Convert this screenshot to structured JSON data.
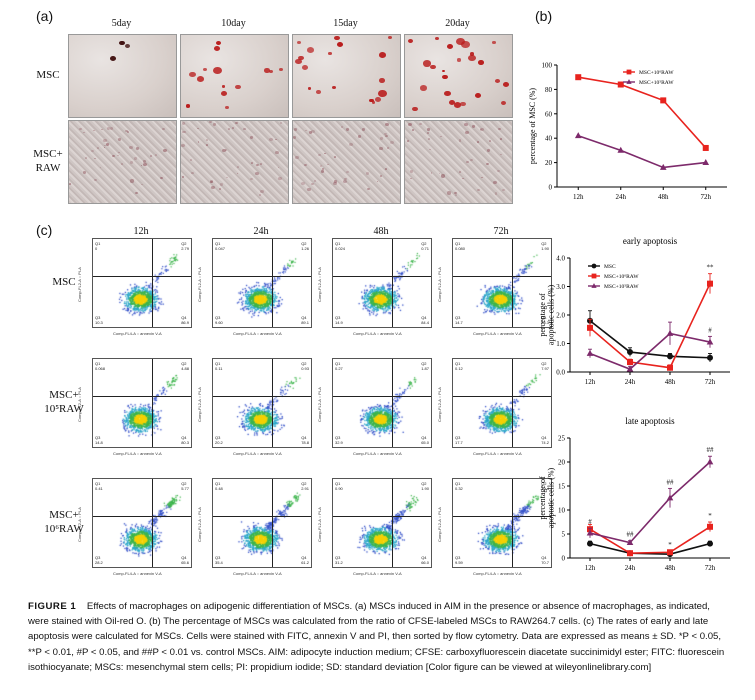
{
  "panels": {
    "a": "(a)",
    "b": "(b)",
    "c": "(c)"
  },
  "panel_a": {
    "columns": [
      "5day",
      "10day",
      "15day",
      "20day"
    ],
    "rows": [
      {
        "lines": [
          "MSC"
        ]
      },
      {
        "lines": [
          "MSC+",
          "RAW"
        ]
      }
    ]
  },
  "panel_c": {
    "columns": [
      "12h",
      "24h",
      "48h",
      "72h"
    ],
    "rows": [
      {
        "lines": [
          "MSC"
        ]
      },
      {
        "lines": [
          "MSC+",
          "10⁵RAW"
        ]
      },
      {
        "lines": [
          "MSC+",
          "10⁶RAW"
        ]
      }
    ],
    "quadrant_values": [
      [
        [
          "0",
          "2.79",
          "10.3",
          "86.9"
        ],
        [
          "0.047",
          "1.26",
          "9.60",
          "89.1"
        ],
        [
          "0.024",
          "0.71",
          "14.9",
          "84.4"
        ],
        [
          "0.080",
          "1.90",
          "14.7",
          "83.3"
        ]
      ],
      [
        [
          "0.068",
          "4.88",
          "14.8",
          "80.3"
        ],
        [
          "0.11",
          "0.93",
          "20.2",
          "78.8"
        ],
        [
          "0.27",
          "1.87",
          "32.9",
          "65.0"
        ],
        [
          "0.12",
          "7.97",
          "17.7",
          "74.2"
        ]
      ],
      [
        [
          "0.41",
          "5.77",
          "28.2",
          "65.6"
        ],
        [
          "0.48",
          "2.91",
          "35.4",
          "61.2"
        ],
        [
          "0.90",
          "1.90",
          "31.2",
          "66.0"
        ],
        [
          "0.32",
          "19.4",
          "9.59",
          "70.7"
        ]
      ]
    ],
    "quadrant_names": [
      "Q1",
      "Q2",
      "Q3",
      "Q4"
    ],
    "x_axis_title": "Comp-FL4-A :: annexin V-A",
    "y_axis_title": "Comp-FL2-A :: PI-A"
  },
  "chart_data": [
    {
      "id": "b",
      "type": "line",
      "title": "",
      "xlabel": "",
      "ylabel": "percentage of MSC (%)",
      "categories": [
        "12h",
        "24h",
        "48h",
        "72h"
      ],
      "ylim": [
        0,
        100
      ],
      "yticks": [
        0,
        20,
        40,
        60,
        80,
        100
      ],
      "legend": "top-right",
      "series": [
        {
          "name": "MSC+10⁶RAW",
          "color": "#e8231e",
          "marker": "square",
          "values": [
            90,
            84,
            71,
            32
          ]
        },
        {
          "name": "MSC+10⁵RAW",
          "color": "#7d2a6b",
          "marker": "triangle",
          "values": [
            42,
            30,
            16,
            20
          ]
        }
      ]
    },
    {
      "id": "c-early",
      "type": "line",
      "title": "early apoptosis",
      "xlabel": "",
      "ylabel": "percentage of apoptotic cells (%)",
      "categories": [
        "12h",
        "24h",
        "48h",
        "72h"
      ],
      "ylim": [
        0,
        4.0
      ],
      "yticks": [
        "0.0",
        "1.0",
        "2.0",
        "3.0",
        "4.0"
      ],
      "legend": "top-left",
      "annotations": [
        {
          "category": "72h",
          "text": "**",
          "series": 1
        },
        {
          "category": "72h",
          "text": "#",
          "series": 2
        }
      ],
      "series": [
        {
          "name": "MSC",
          "color": "#111111",
          "marker": "circle",
          "values": [
            1.8,
            0.7,
            0.55,
            0.5
          ],
          "errors": [
            0.35,
            0.15,
            0.1,
            0.15
          ]
        },
        {
          "name": "MSC+10⁶RAW",
          "color": "#e8231e",
          "marker": "square",
          "values": [
            1.55,
            0.35,
            0.15,
            3.1
          ],
          "errors": [
            0.3,
            0.1,
            0.1,
            0.35
          ]
        },
        {
          "name": "MSC+10⁵RAW",
          "color": "#7d2a6b",
          "marker": "triangle",
          "values": [
            0.65,
            0.1,
            1.35,
            1.05
          ],
          "errors": [
            0.15,
            0.1,
            0.4,
            0.2
          ]
        }
      ]
    },
    {
      "id": "c-late",
      "type": "line",
      "title": "late apoptosis",
      "xlabel": "",
      "ylabel": "percentage of apoptotic cells (%)",
      "categories": [
        "12h",
        "24h",
        "48h",
        "72h"
      ],
      "ylim": [
        0,
        25
      ],
      "yticks": [
        0,
        5,
        10,
        15,
        20,
        25
      ],
      "annotations": [
        {
          "category": "12h",
          "text": "#",
          "series": 2
        },
        {
          "category": "24h",
          "text": "##",
          "series": 2
        },
        {
          "category": "48h",
          "text": "##",
          "series": 2
        },
        {
          "category": "48h",
          "text": "*",
          "series": 1
        },
        {
          "category": "72h",
          "text": "##",
          "series": 2
        },
        {
          "category": "72h",
          "text": "*",
          "series": 1
        }
      ],
      "series": [
        {
          "name": "MSC",
          "color": "#111111",
          "marker": "circle",
          "values": [
            3.0,
            1.0,
            0.8,
            3.0
          ],
          "errors": [
            0.5,
            0.3,
            0.3,
            0.5
          ]
        },
        {
          "name": "MSC+10⁶RAW",
          "color": "#e8231e",
          "marker": "square",
          "values": [
            6.0,
            1.0,
            1.2,
            6.5
          ],
          "errors": [
            1.0,
            0.3,
            0.3,
            1.0
          ]
        },
        {
          "name": "MSC+10⁵RAW",
          "color": "#7d2a6b",
          "marker": "triangle",
          "values": [
            5.2,
            3.2,
            12.5,
            20.0
          ],
          "errors": [
            1.0,
            0.4,
            2.0,
            1.2
          ]
        }
      ]
    }
  ],
  "caption": {
    "label": "FIGURE 1",
    "text": "Effects of macrophages on adipogenic differentiation of MSCs. (a) MSCs induced in AIM in the presence or absence of macrophages, as indicated, were stained with Oil-red O. (b) The percentage of MSCs was calculated from the ratio of CFSE-labeled MSCs to RAW264.7 cells. (c) The rates of early and late apoptosis were calculated for MSCs. Cells were stained with FITC, annexin V and PI, then sorted by flow cytometry. Data are expressed as means ± SD. *P < 0.05, **P < 0.01, #P < 0.05, and ##P < 0.01 vs. control MSCs. AIM: adipocyte induction medium; CFSE: carboxyfluorescein diacetate succinimidyl ester; FITC: fluorescein isothiocyanate; MSCs: mesenchymal stem cells; PI: propidium iodide; SD: standard deviation [Color figure can be viewed at wileyonlinelibrary.com]"
  }
}
